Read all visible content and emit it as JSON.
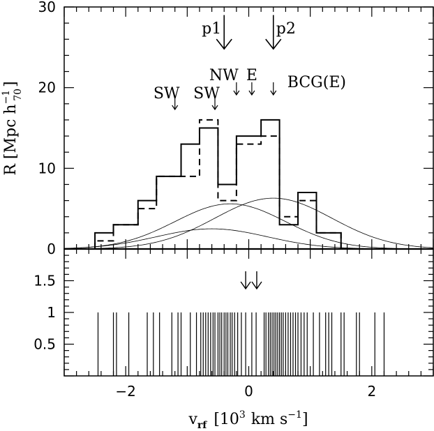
{
  "chart_data": [
    {
      "type": "bar",
      "panel": "top",
      "ylabel_main": "R [Mpc h",
      "ylabel_exp": "−1",
      "ylabel_sub": "70",
      "ylabel_close": "]",
      "xlim": [
        -3,
        3
      ],
      "ylim": [
        0,
        30
      ],
      "yticks": [
        0,
        10,
        20,
        30
      ],
      "ytick_labels": [
        "0",
        "10",
        "20",
        "30"
      ],
      "bin_edges": [
        -2.5,
        -2.2,
        -1.8,
        -1.5,
        -1.1,
        -0.8,
        -0.5,
        -0.2,
        0.2,
        0.5,
        0.8,
        1.1,
        1.5,
        1.8,
        2.2,
        2.6
      ],
      "series": [
        {
          "style": "solid",
          "values": [
            2,
            3,
            6,
            9,
            13,
            15,
            8,
            14,
            16,
            3,
            7,
            2,
            0,
            0,
            0
          ]
        },
        {
          "style": "dashed",
          "values": [
            1,
            3,
            5,
            9,
            9,
            16,
            6,
            13,
            14,
            4,
            6,
            2,
            0,
            0,
            0
          ]
        }
      ],
      "gaussians": [
        {
          "amp": 2.5,
          "mu": -0.6,
          "sigma": 0.9
        },
        {
          "amp": 5.6,
          "mu": -0.3,
          "sigma": 0.9
        },
        {
          "amp": 6.3,
          "mu": 0.4,
          "sigma": 0.95
        }
      ],
      "annotations": [
        {
          "label": "p1",
          "x": -0.4,
          "arrow": "big"
        },
        {
          "label": "p2",
          "x": 0.4,
          "arrow": "big"
        },
        {
          "label": "SW",
          "x": -1.2,
          "arrow": "small"
        },
        {
          "label": "SW",
          "x": -0.55,
          "arrow": "small"
        },
        {
          "label": "NW",
          "x": -0.2,
          "arrow": "small"
        },
        {
          "label": "E",
          "x": 0.05,
          "arrow": "small"
        },
        {
          "label": "BCG(E)",
          "x": 0.4,
          "arrow": "small"
        }
      ]
    },
    {
      "type": "scatter",
      "panel": "bottom",
      "xlabel_main": "v",
      "xlabel_sub": "rf",
      "xlabel_bracket": "[10",
      "xlabel_exp": "3",
      "xlabel_units": "km s",
      "xlabel_exp2": "−1",
      "xlabel_close": "]",
      "xlim": [
        -3,
        3
      ],
      "ylim": [
        0,
        2
      ],
      "xticks": [
        -2,
        0,
        2
      ],
      "xtick_labels": [
        "−2",
        "0",
        "2"
      ],
      "yticks": [
        0.5,
        1,
        1.5
      ],
      "ytick_labels": [
        "0.5",
        "1",
        "1.5"
      ],
      "line_height": 1,
      "arrows_x": [
        -0.05,
        0.13
      ],
      "velocities": [
        -2.45,
        -2.2,
        -2.15,
        -1.95,
        -1.65,
        -1.55,
        -1.45,
        -1.25,
        -1.15,
        -1.1,
        -0.95,
        -0.85,
        -0.78,
        -0.74,
        -0.7,
        -0.66,
        -0.62,
        -0.58,
        -0.55,
        -0.5,
        -0.47,
        -0.44,
        -0.4,
        -0.37,
        -0.34,
        -0.3,
        -0.27,
        -0.23,
        -0.18,
        -0.12,
        -0.05,
        0.05,
        0.12,
        0.25,
        0.28,
        0.32,
        0.35,
        0.38,
        0.41,
        0.44,
        0.47,
        0.5,
        0.53,
        0.56,
        0.6,
        0.64,
        0.68,
        0.72,
        0.76,
        0.8,
        0.85,
        0.9,
        0.95,
        1.05,
        1.15,
        1.25,
        1.3,
        1.35,
        1.5,
        1.55,
        1.75,
        1.8,
        2.05,
        2.2
      ]
    }
  ]
}
